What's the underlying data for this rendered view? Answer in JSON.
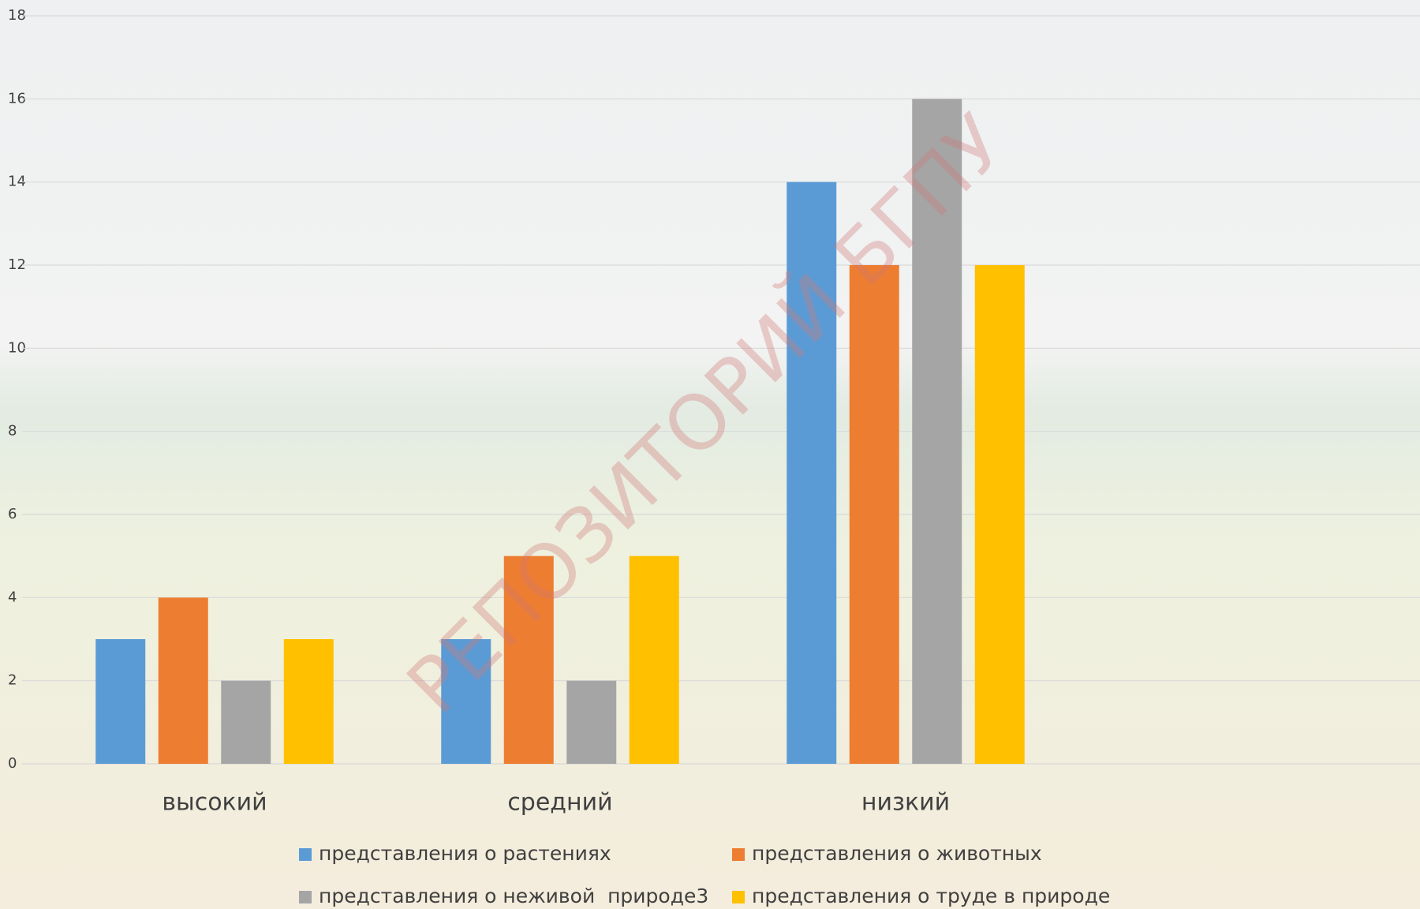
{
  "chart_data": {
    "type": "bar",
    "categories": [
      "высокий",
      "средний",
      "низкий"
    ],
    "series": [
      {
        "name": "представления о растениях",
        "color": "#5b9bd5",
        "values": [
          3,
          3,
          14
        ]
      },
      {
        "name": "представления о животных",
        "color": "#ed7d31",
        "values": [
          4,
          5,
          12
        ]
      },
      {
        "name": "представления о неживой  природе3",
        "color": "#a5a5a5",
        "values": [
          2,
          2,
          16
        ]
      },
      {
        "name": "представления о труде в природе",
        "color": "#ffc000",
        "values": [
          3,
          5,
          12
        ]
      }
    ],
    "ylim": [
      0,
      18
    ],
    "yticks": [
      0,
      2,
      4,
      6,
      8,
      10,
      12,
      14,
      16,
      18
    ],
    "grid": true,
    "legend": "bottom",
    "watermark": "РЕПОЗИТОРИЙ БГПУ"
  }
}
